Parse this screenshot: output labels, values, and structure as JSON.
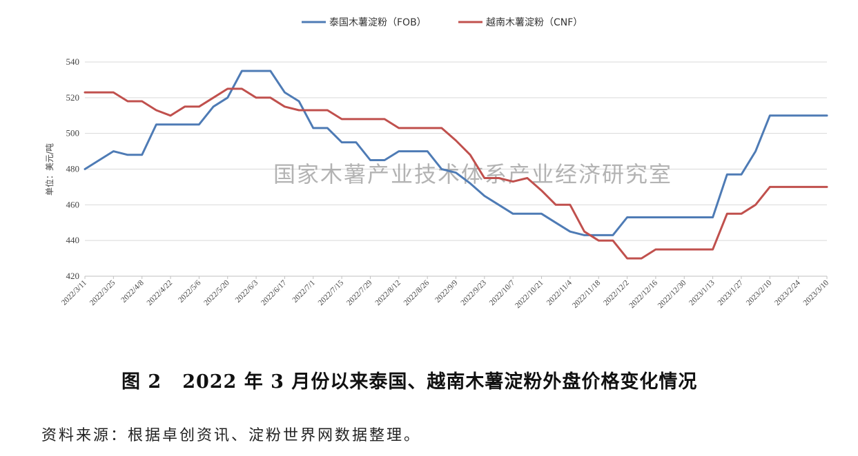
{
  "chart_data": {
    "type": "line",
    "ylabel": "单位：美元/吨",
    "ylim": [
      420,
      540
    ],
    "yticks": [
      420,
      440,
      460,
      480,
      500,
      520,
      540
    ],
    "grid": "horizontal",
    "legend_position": "top-center",
    "watermark": "国家木薯产业技术体系产业经济研究室",
    "x_tick_labels": [
      "2022/3/11",
      "2022/3/25",
      "2022/4/8",
      "2022/4/22",
      "2022/5/6",
      "2022/5/20",
      "2022/6/3",
      "2022/6/17",
      "2022/7/1",
      "2022/7/15",
      "2022/7/29",
      "2022/8/12",
      "2022/8/26",
      "2022/9/9",
      "2022/9/23",
      "2022/10/7",
      "2022/10/21",
      "2022/11/4",
      "2022/11/18",
      "2022/12/2",
      "2022/12/16",
      "2022/12/30",
      "2023/1/13",
      "2023/1/27",
      "2023/2/10",
      "2023/2/24",
      "2023/3/10"
    ],
    "x": [
      "2022/3/11",
      "2022/3/18",
      "2022/3/25",
      "2022/4/1",
      "2022/4/8",
      "2022/4/15",
      "2022/4/22",
      "2022/4/29",
      "2022/5/6",
      "2022/5/13",
      "2022/5/20",
      "2022/5/27",
      "2022/6/3",
      "2022/6/10",
      "2022/6/17",
      "2022/6/24",
      "2022/7/1",
      "2022/7/8",
      "2022/7/15",
      "2022/7/22",
      "2022/7/29",
      "2022/8/5",
      "2022/8/12",
      "2022/8/19",
      "2022/8/26",
      "2022/9/2",
      "2022/9/9",
      "2022/9/16",
      "2022/9/23",
      "2022/9/30",
      "2022/10/7",
      "2022/10/14",
      "2022/10/21",
      "2022/10/28",
      "2022/11/4",
      "2022/11/11",
      "2022/11/18",
      "2022/11/25",
      "2022/12/2",
      "2022/12/9",
      "2022/12/16",
      "2022/12/23",
      "2022/12/30",
      "2023/1/6",
      "2023/1/13",
      "2023/1/20",
      "2023/1/27",
      "2023/2/3",
      "2023/2/10",
      "2023/2/17",
      "2023/2/24",
      "2023/3/3",
      "2023/3/10"
    ],
    "series": [
      {
        "name": "泰国木薯淀粉（FOB）",
        "color": "#4e7bb5",
        "values": [
          480,
          485,
          490,
          488,
          488,
          505,
          505,
          505,
          505,
          515,
          520,
          535,
          535,
          535,
          523,
          518,
          503,
          503,
          495,
          495,
          485,
          485,
          490,
          490,
          490,
          480,
          478,
          472,
          465,
          460,
          455,
          455,
          455,
          450,
          445,
          443,
          443,
          443,
          453,
          453,
          453,
          453,
          453,
          453,
          453,
          477,
          477,
          490,
          510,
          510,
          510,
          510,
          510
        ]
      },
      {
        "name": "越南木薯淀粉（CNF）",
        "color": "#c0504d",
        "values": [
          523,
          523,
          523,
          518,
          518,
          513,
          510,
          515,
          515,
          520,
          525,
          525,
          520,
          520,
          515,
          513,
          513,
          513,
          508,
          508,
          508,
          508,
          503,
          503,
          503,
          503,
          496,
          488,
          475,
          475,
          473,
          475,
          468,
          460,
          460,
          445,
          440,
          440,
          430,
          430,
          435,
          435,
          435,
          435,
          435,
          455,
          455,
          460,
          470,
          470,
          470,
          470,
          470
        ]
      }
    ]
  },
  "caption": {
    "figure_number": "图 2",
    "title": "2022 年 3 月份以来泰国、越南木薯淀粉外盘价格变化情况"
  },
  "source": "资料来源：根据卓创资讯、淀粉世界网数据整理。"
}
